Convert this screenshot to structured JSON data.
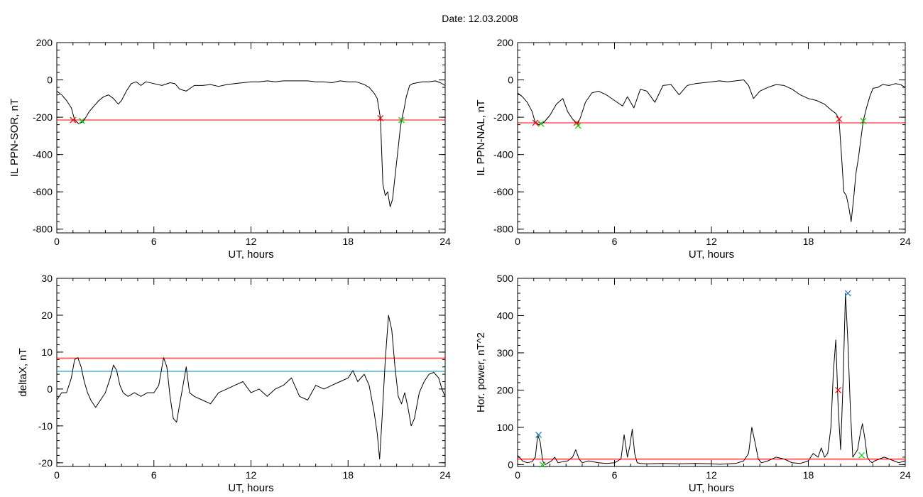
{
  "page": {
    "title": "Date:  12.03.2008"
  },
  "chart_data": [
    {
      "type": "line",
      "xlabel": "UT, hours",
      "ylabel": "IL PPN-SOR, nT",
      "xlim": [
        0,
        24
      ],
      "ylim": [
        -820,
        200
      ],
      "xticks": [
        0,
        6,
        12,
        18,
        24
      ],
      "yticks": [
        200,
        0,
        -200,
        -400,
        -600,
        -800
      ],
      "threshold_lines": [
        {
          "y": -215,
          "color": "#ff0000"
        }
      ],
      "series": [
        {
          "color": "#000000",
          "x": [
            0,
            0.3,
            0.6,
            0.9,
            1.1,
            1.35,
            1.6,
            1.8,
            2.0,
            2.3,
            2.6,
            2.9,
            3.2,
            3.5,
            3.8,
            4.0,
            4.3,
            4.6,
            4.9,
            5.2,
            5.5,
            6.0,
            6.5,
            7.0,
            7.3,
            7.6,
            8.0,
            8.5,
            9.0,
            9.5,
            10.0,
            10.5,
            11.0,
            11.5,
            12.0,
            12.5,
            13.0,
            13.5,
            14.0,
            14.5,
            15.0,
            15.5,
            16.0,
            16.5,
            17.0,
            17.5,
            18.0,
            18.5,
            19.0,
            19.3,
            19.6,
            19.8,
            20.0,
            20.15,
            20.3,
            20.45,
            20.6,
            20.75,
            20.9,
            21.05,
            21.2,
            21.3,
            21.45,
            21.6,
            21.8,
            22.0,
            22.3,
            22.6,
            23.0,
            23.4,
            23.7,
            24.0
          ],
          "y": [
            -60,
            -80,
            -110,
            -150,
            -215,
            -235,
            -225,
            -200,
            -170,
            -140,
            -110,
            -90,
            -80,
            -100,
            -130,
            -110,
            -60,
            -20,
            -10,
            -30,
            -10,
            -20,
            -30,
            -15,
            -20,
            -50,
            -60,
            -30,
            -30,
            -25,
            -35,
            -25,
            -20,
            -15,
            -10,
            -10,
            -5,
            -10,
            -5,
            -5,
            -5,
            -5,
            -10,
            -10,
            -15,
            -5,
            -10,
            -10,
            -25,
            -40,
            -70,
            -100,
            -205,
            -560,
            -620,
            -600,
            -680,
            -640,
            -520,
            -400,
            -280,
            -215,
            -160,
            -90,
            -30,
            -20,
            -15,
            -10,
            -10,
            -5,
            -15,
            -30
          ]
        }
      ],
      "markers": [
        {
          "x": 1.0,
          "y": -215,
          "color": "#ff0000"
        },
        {
          "x": 1.55,
          "y": -220,
          "color": "#00cc00"
        },
        {
          "x": 20.0,
          "y": -205,
          "color": "#ff0000"
        },
        {
          "x": 21.3,
          "y": -215,
          "color": "#00cc00"
        }
      ]
    },
    {
      "type": "line",
      "xlabel": "UT, hours",
      "ylabel": "IL PPN-NAL, nT",
      "xlim": [
        0,
        24
      ],
      "ylim": [
        -820,
        200
      ],
      "xticks": [
        0,
        6,
        12,
        18,
        24
      ],
      "yticks": [
        200,
        0,
        -200,
        -400,
        -600,
        -800
      ],
      "threshold_lines": [
        {
          "y": -230,
          "color": "#ff0000"
        }
      ],
      "series": [
        {
          "color": "#000000",
          "x": [
            0,
            0.3,
            0.6,
            0.9,
            1.1,
            1.3,
            1.6,
            2.0,
            2.4,
            2.8,
            3.1,
            3.4,
            3.7,
            3.9,
            4.2,
            4.6,
            5.0,
            5.5,
            6.0,
            6.5,
            6.8,
            7.2,
            7.6,
            8.0,
            8.5,
            9.0,
            9.5,
            10.0,
            10.5,
            11.0,
            11.5,
            12.0,
            12.5,
            13.0,
            13.5,
            14.0,
            14.3,
            14.6,
            15.0,
            15.5,
            16.0,
            16.5,
            17.0,
            17.5,
            18.0,
            18.5,
            19.0,
            19.4,
            19.7,
            19.9,
            20.05,
            20.2,
            20.35,
            20.5,
            20.65,
            20.8,
            20.95,
            21.1,
            21.25,
            21.4,
            21.6,
            21.8,
            22.0,
            22.3,
            22.6,
            23.0,
            23.4,
            23.7,
            24.0
          ],
          "y": [
            -70,
            -90,
            -120,
            -170,
            -230,
            -240,
            -230,
            -190,
            -130,
            -100,
            -170,
            -210,
            -240,
            -200,
            -120,
            -70,
            -60,
            -80,
            -110,
            -140,
            -90,
            -150,
            -50,
            -60,
            -120,
            -30,
            -25,
            -80,
            -30,
            -20,
            -15,
            -10,
            -5,
            -10,
            -5,
            0,
            -30,
            -100,
            -60,
            -40,
            -25,
            -30,
            -50,
            -80,
            -100,
            -110,
            -130,
            -160,
            -180,
            -210,
            -400,
            -600,
            -620,
            -680,
            -760,
            -640,
            -500,
            -420,
            -320,
            -220,
            -150,
            -90,
            -45,
            -40,
            -25,
            -30,
            -20,
            -25,
            -40
          ]
        }
      ],
      "markers": [
        {
          "x": 1.1,
          "y": -230,
          "color": "#ff0000"
        },
        {
          "x": 1.45,
          "y": -235,
          "color": "#00cc00"
        },
        {
          "x": 3.65,
          "y": -230,
          "color": "#ff0000"
        },
        {
          "x": 3.75,
          "y": -245,
          "color": "#00cc00"
        },
        {
          "x": 19.9,
          "y": -210,
          "color": "#ff0000"
        },
        {
          "x": 21.4,
          "y": -220,
          "color": "#00cc00"
        }
      ]
    },
    {
      "type": "line",
      "xlabel": "UT, hours",
      "ylabel": "deltaX, nT",
      "xlim": [
        0,
        24
      ],
      "ylim": [
        -21,
        30
      ],
      "xticks": [
        0,
        6,
        12,
        18,
        24
      ],
      "yticks": [
        30,
        20,
        10,
        0,
        -10,
        -20
      ],
      "threshold_lines": [
        {
          "y": 8.4,
          "color": "#ff0000"
        },
        {
          "y": 4.8,
          "color": "#0088aa"
        }
      ],
      "series": [
        {
          "color": "#000000",
          "x": [
            0,
            0.3,
            0.6,
            0.9,
            1.1,
            1.3,
            1.5,
            1.7,
            1.9,
            2.1,
            2.4,
            2.7,
            3.0,
            3.3,
            3.5,
            3.7,
            3.9,
            4.1,
            4.4,
            4.8,
            5.2,
            5.6,
            6.0,
            6.3,
            6.6,
            6.8,
            7.0,
            7.2,
            7.4,
            7.6,
            7.8,
            8.0,
            8.2,
            8.5,
            9.0,
            9.5,
            10.0,
            10.5,
            11.0,
            11.5,
            12.0,
            12.5,
            13.0,
            13.5,
            14.0,
            14.5,
            15.0,
            15.5,
            16.0,
            16.5,
            17.0,
            17.5,
            18.0,
            18.3,
            18.6,
            19.0,
            19.3,
            19.6,
            19.8,
            19.95,
            20.1,
            20.3,
            20.5,
            20.7,
            20.9,
            21.1,
            21.3,
            21.5,
            21.7,
            21.9,
            22.1,
            22.4,
            22.7,
            23.0,
            23.3,
            23.6,
            23.8,
            24.0
          ],
          "y": [
            -3,
            -1,
            -1,
            3,
            8,
            8.5,
            6,
            2,
            -1,
            -3,
            -5,
            -3,
            -1,
            3,
            6.5,
            5,
            1,
            -1,
            -2,
            -1,
            -2,
            -1,
            -1,
            1,
            8.5,
            6,
            -2,
            -8,
            -9,
            -4,
            1,
            6,
            -1,
            -2,
            -3,
            -4,
            -1,
            0,
            1,
            2,
            -1,
            0,
            -2,
            0,
            1,
            3,
            -2,
            -3,
            1,
            0,
            1,
            2,
            3,
            5,
            2,
            4,
            1,
            -6,
            -12,
            -19,
            -8,
            8,
            20,
            16,
            6,
            -2,
            -4,
            -1,
            -5,
            -10,
            -8,
            -1,
            2,
            4,
            4.5,
            3,
            0,
            -2
          ]
        }
      ]
    },
    {
      "type": "line",
      "xlabel": "UT, hours",
      "ylabel": "Hor. power, nT^2",
      "xlim": [
        0,
        24
      ],
      "ylim": [
        -5,
        500
      ],
      "xticks": [
        0,
        6,
        12,
        18,
        24
      ],
      "yticks": [
        500,
        400,
        300,
        200,
        100,
        0
      ],
      "threshold_lines": [
        {
          "y": 15,
          "color": "#ff0000"
        }
      ],
      "series": [
        {
          "color": "#000000",
          "x": [
            0,
            0.3,
            0.6,
            0.9,
            1.1,
            1.25,
            1.4,
            1.55,
            1.7,
            1.9,
            2.1,
            2.3,
            2.5,
            2.8,
            3.1,
            3.4,
            3.6,
            3.8,
            4.0,
            4.4,
            5.0,
            5.5,
            6.0,
            6.4,
            6.6,
            6.8,
            6.95,
            7.1,
            7.25,
            7.4,
            7.6,
            8.0,
            9.0,
            10.0,
            11.0,
            12.0,
            12.5,
            13.0,
            13.5,
            14.0,
            14.3,
            14.5,
            14.7,
            14.9,
            15.1,
            15.5,
            16.0,
            16.5,
            17.0,
            17.5,
            18.0,
            18.3,
            18.6,
            18.8,
            19.0,
            19.2,
            19.4,
            19.55,
            19.7,
            19.85,
            20.0,
            20.15,
            20.3,
            20.45,
            20.6,
            20.75,
            20.9,
            21.05,
            21.2,
            21.35,
            21.5,
            21.65,
            21.8,
            21.95,
            22.1,
            22.4,
            22.7,
            23.0,
            23.3,
            23.6,
            24.0
          ],
          "y": [
            25,
            10,
            5,
            8,
            20,
            80,
            60,
            10,
            0,
            5,
            10,
            20,
            5,
            8,
            10,
            20,
            40,
            15,
            5,
            10,
            5,
            3,
            5,
            15,
            80,
            20,
            50,
            95,
            30,
            5,
            3,
            2,
            3,
            2,
            3,
            2,
            1,
            2,
            3,
            10,
            30,
            100,
            60,
            15,
            5,
            10,
            20,
            15,
            5,
            3,
            10,
            30,
            20,
            45,
            20,
            30,
            100,
            250,
            335,
            150,
            40,
            220,
            460,
            330,
            150,
            20,
            30,
            40,
            80,
            110,
            70,
            20,
            10,
            5,
            10,
            15,
            20,
            15,
            10,
            5,
            10
          ]
        }
      ],
      "markers": [
        {
          "x": 1.3,
          "y": 80,
          "color": "#0077bb"
        },
        {
          "x": 1.55,
          "y": 0,
          "color": "#00cc00"
        },
        {
          "x": 19.85,
          "y": 200,
          "color": "#ff0000"
        },
        {
          "x": 20.45,
          "y": 460,
          "color": "#0077bb"
        },
        {
          "x": 21.3,
          "y": 25,
          "color": "#00cc00"
        }
      ]
    }
  ]
}
